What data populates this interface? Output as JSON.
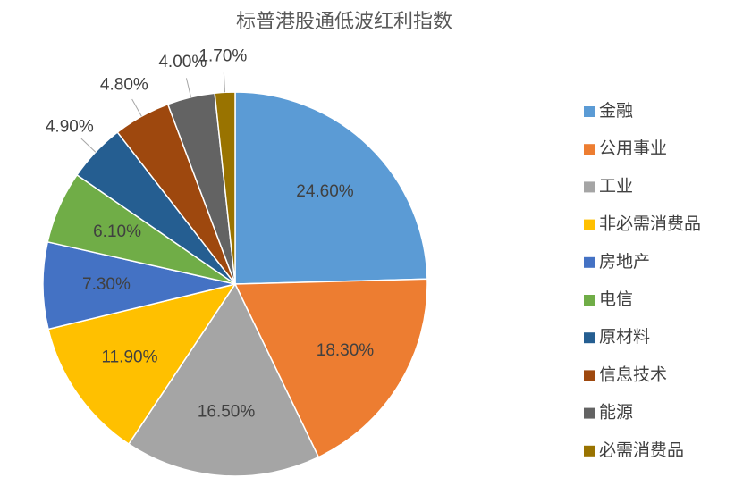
{
  "chart_data": {
    "type": "pie",
    "title": "标普港股通低波红利指数",
    "categories": [
      "金融",
      "公用事业",
      "工业",
      "非必需消费品",
      "房地产",
      "电信",
      "原材料",
      "信息技术",
      "能源",
      "必需消费品"
    ],
    "values": [
      24.6,
      18.3,
      16.5,
      11.9,
      7.3,
      6.1,
      4.9,
      4.8,
      4.0,
      1.7
    ],
    "value_labels": [
      "24.60%",
      "18.30%",
      "16.50%",
      "11.90%",
      "7.30%",
      "6.10%",
      "4.90%",
      "4.80%",
      "4.00%",
      "1.70%"
    ],
    "colors": [
      "#5b9bd5",
      "#ed7d31",
      "#a5a5a5",
      "#ffc000",
      "#4472c4",
      "#70ad47",
      "#255e91",
      "#9e480e",
      "#636363",
      "#997300"
    ],
    "legend": "right"
  }
}
